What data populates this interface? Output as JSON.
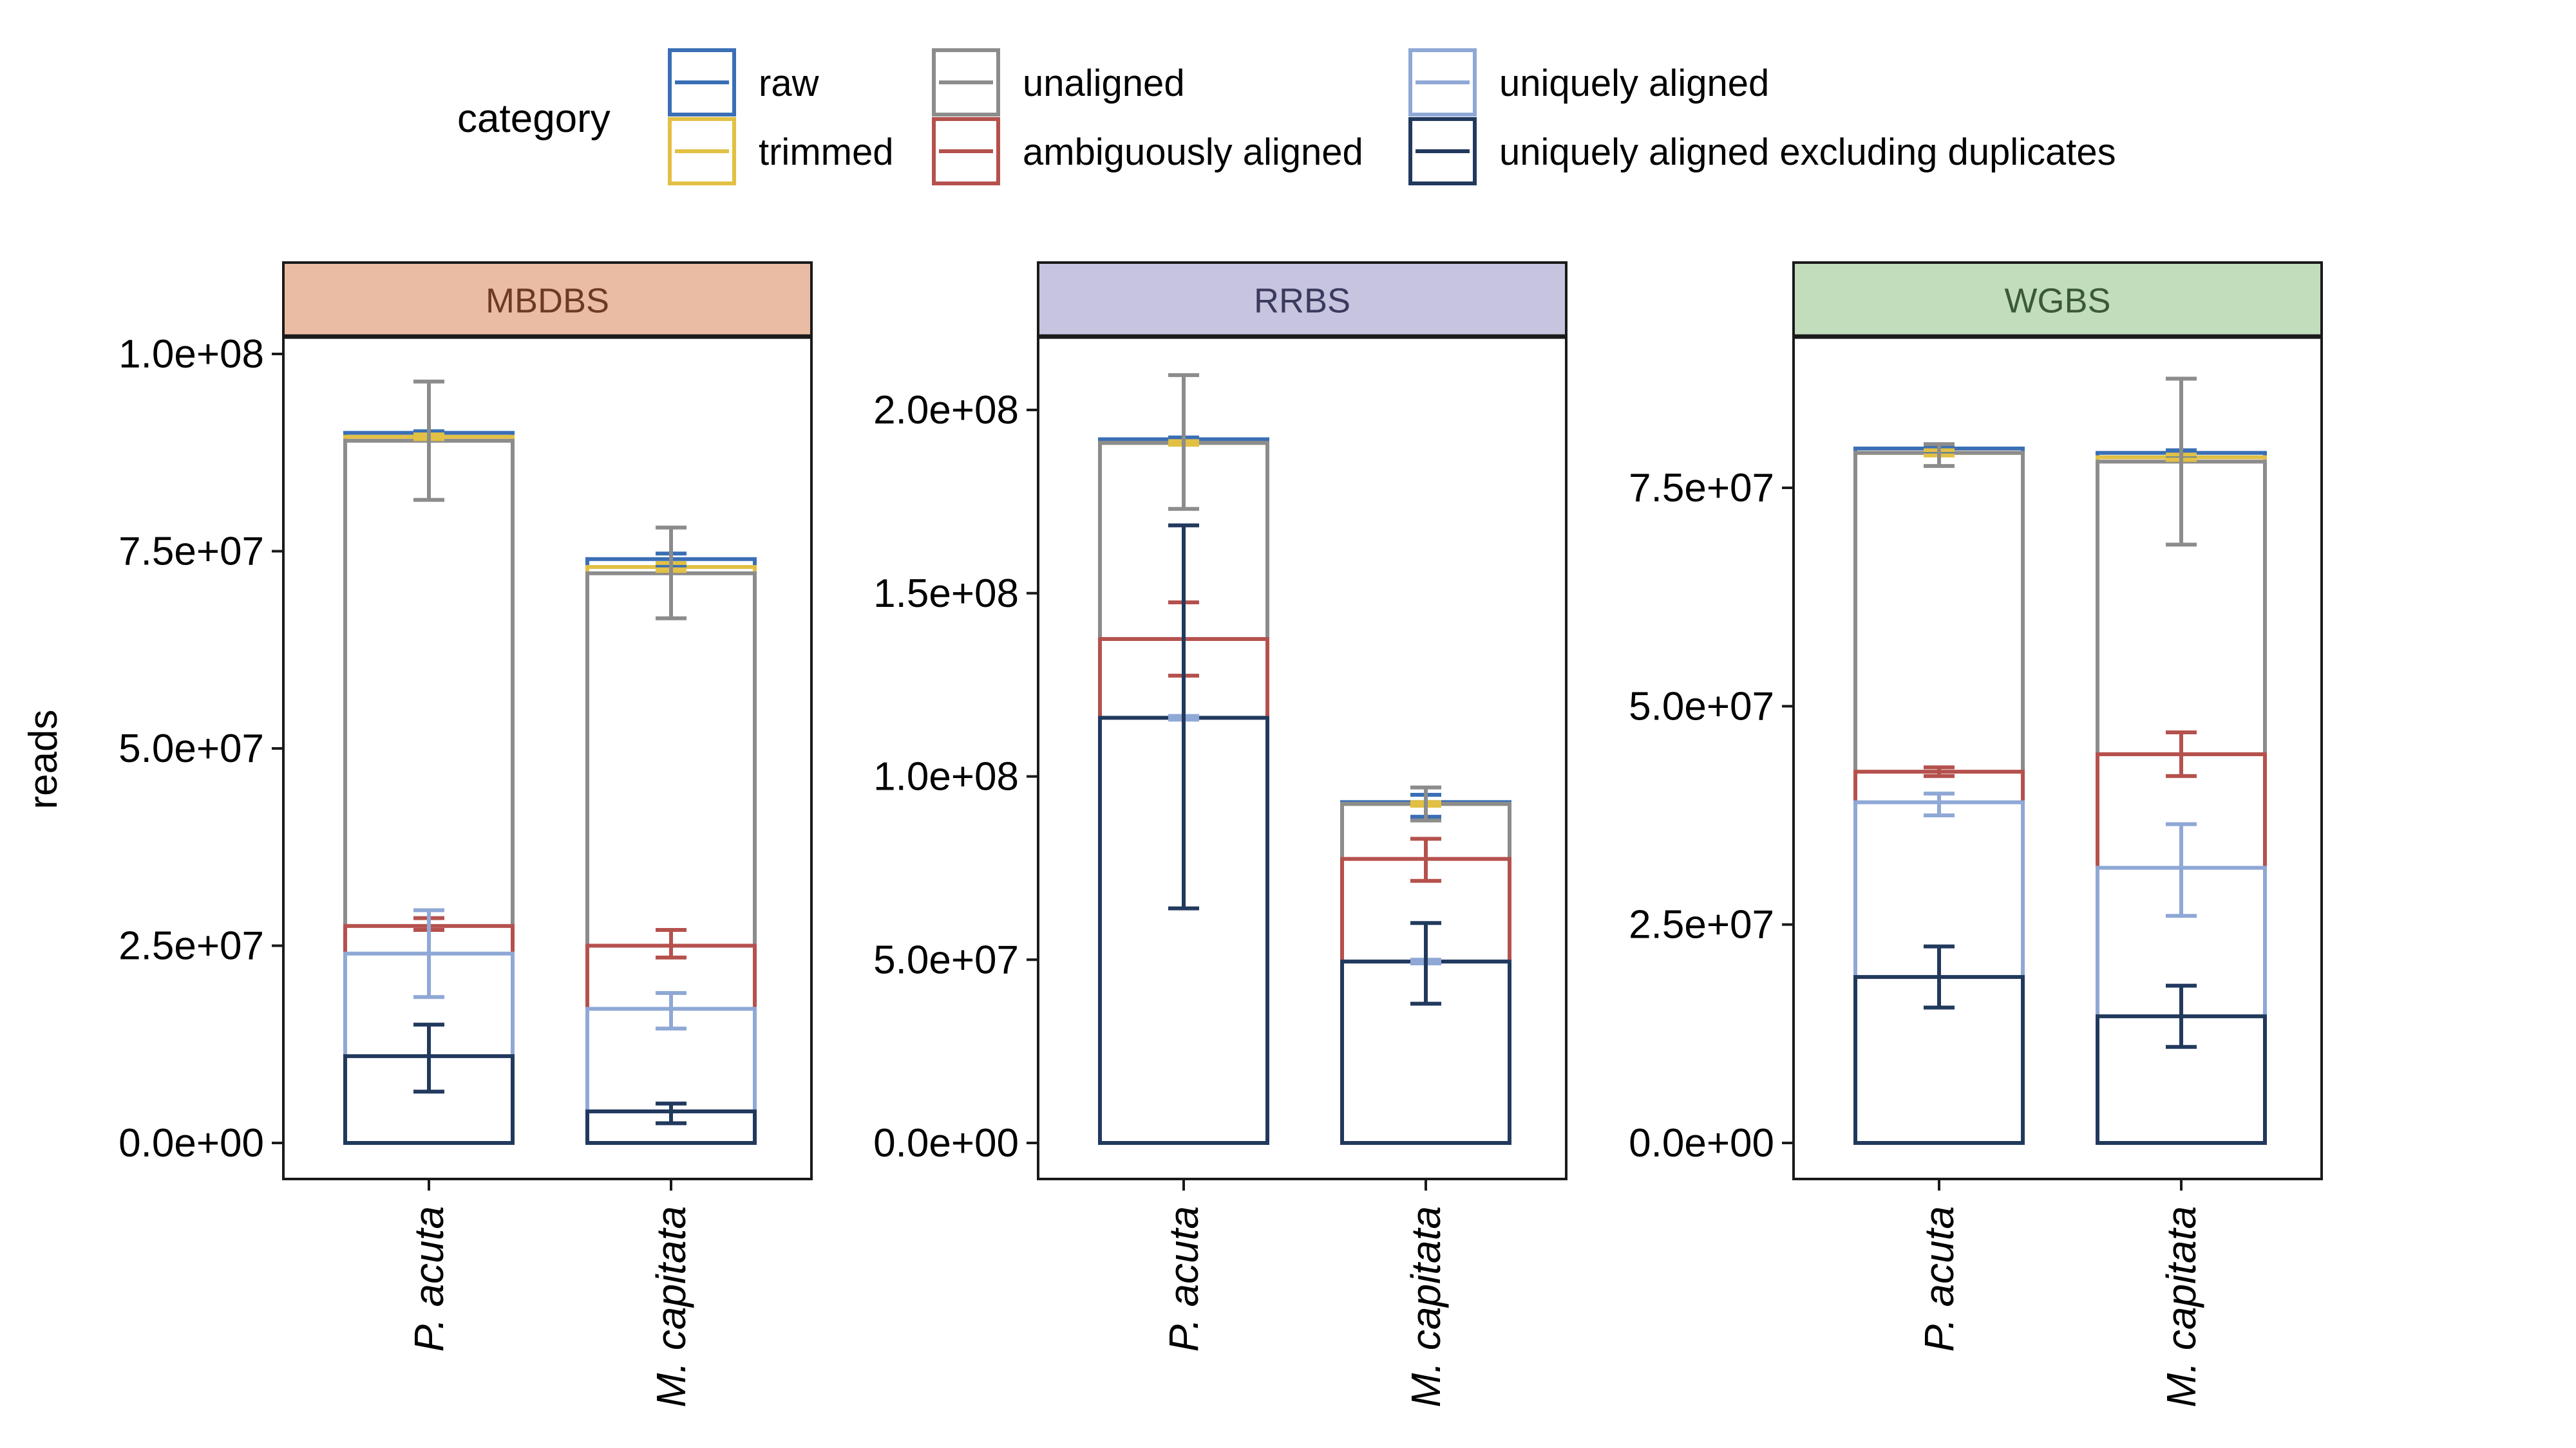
{
  "legend": {
    "title": "category",
    "items": [
      {
        "label": "raw",
        "color": "#3a6fb5"
      },
      {
        "label": "trimmed",
        "color": "#e2c044"
      },
      {
        "label": "unaligned",
        "color": "#8c8c8c"
      },
      {
        "label": "ambiguously aligned",
        "color": "#b5514d"
      },
      {
        "label": "uniquely aligned",
        "color": "#8fa8d6"
      },
      {
        "label": "uniquely aligned excluding duplicates",
        "color": "#22395e"
      }
    ]
  },
  "chart_data": {
    "type": "bar",
    "ylabel": "reads",
    "categories": [
      "P. acuta",
      "M. capitata"
    ],
    "panels": [
      {
        "label": "MBDBS",
        "strip_color": "#eabca4",
        "strip_text_color": "#6e3a22",
        "ylim": [
          0,
          100000000
        ],
        "ticks": [
          {
            "value": 0,
            "label": "0.0e+00"
          },
          {
            "value": 25000000,
            "label": "2.5e+07"
          },
          {
            "value": 50000000,
            "label": "5.0e+07"
          },
          {
            "value": 75000000,
            "label": "7.5e+07"
          },
          {
            "value": 100000000,
            "label": "1.0e+08"
          }
        ],
        "series": [
          {
            "name": "raw",
            "values": [
              90000000,
              74000000
            ],
            "errors": [
              [
                89800000,
                90200000
              ],
              [
                73200000,
                74700000
              ]
            ]
          },
          {
            "name": "trimmed",
            "values": [
              89500000,
              73000000
            ],
            "errors": [
              [
                89200000,
                89800000
              ],
              [
                72500000,
                73500000
              ]
            ]
          },
          {
            "name": "unaligned",
            "values": [
              89000000,
              72200000
            ],
            "errors": [
              [
                81500000,
                96500000
              ],
              [
                66500000,
                78000000
              ]
            ]
          },
          {
            "name": "ambiguously aligned",
            "values": [
              27500000,
              25000000
            ],
            "errors": [
              [
                27000000,
                28500000
              ],
              [
                23500000,
                27000000
              ]
            ]
          },
          {
            "name": "uniquely aligned",
            "values": [
              24000000,
              17000000
            ],
            "errors": [
              [
                18500000,
                29500000
              ],
              [
                14500000,
                19000000
              ]
            ]
          },
          {
            "name": "uniquely aligned excluding duplicates",
            "values": [
              11000000,
              4000000
            ],
            "errors": [
              [
                6500000,
                15000000
              ],
              [
                2500000,
                5000000
              ]
            ]
          }
        ]
      },
      {
        "label": "RRBS",
        "strip_color": "#c6c4de",
        "strip_text_color": "#3a3a5e",
        "ylim": [
          0,
          200000000
        ],
        "ticks": [
          {
            "value": 0,
            "label": "0.0e+00"
          },
          {
            "value": 50000000,
            "label": "5.0e+07"
          },
          {
            "value": 100000000,
            "label": "1.0e+08"
          },
          {
            "value": 150000000,
            "label": "1.5e+08"
          },
          {
            "value": 200000000,
            "label": "2.0e+08"
          }
        ],
        "series": [
          {
            "name": "raw",
            "values": [
              192000000,
              93000000
            ],
            "errors": [
              [
                191500000,
                192500000
              ],
              [
                89000000,
                95000000
              ]
            ]
          },
          {
            "name": "trimmed",
            "values": [
              191000000,
              92500000
            ],
            "errors": [
              [
                190500000,
                191500000
              ],
              [
                92000000,
                93000000
              ]
            ]
          },
          {
            "name": "unaligned",
            "values": [
              191000000,
              92500000
            ],
            "errors": [
              [
                173000000,
                209500000
              ],
              [
                88000000,
                97000000
              ]
            ]
          },
          {
            "name": "ambiguously aligned",
            "values": [
              137500000,
              77500000
            ],
            "errors": [
              [
                127500000,
                147500000
              ],
              [
                71500000,
                83000000
              ]
            ]
          },
          {
            "name": "uniquely aligned",
            "values": [
              116000000,
              49500000
            ],
            "errors": [
              [
                115500000,
                116500000
              ],
              [
                49000000,
                50000000
              ]
            ]
          },
          {
            "name": "uniquely aligned excluding duplicates",
            "values": [
              116000000,
              49500000
            ],
            "errors": [
              [
                64000000,
                168500000
              ],
              [
                38000000,
                60000000
              ]
            ]
          }
        ]
      },
      {
        "label": "WGBS",
        "strip_color": "#c1ddbb",
        "strip_text_color": "#3a5a36",
        "ylim": [
          0,
          90000000
        ],
        "ticks": [
          {
            "value": 0,
            "label": "0.0e+00"
          },
          {
            "value": 25000000,
            "label": "2.5e+07"
          },
          {
            "value": 50000000,
            "label": "5.0e+07"
          },
          {
            "value": 75000000,
            "label": "7.5e+07"
          }
        ],
        "series": [
          {
            "name": "raw",
            "values": [
              79500000,
              79000000
            ],
            "errors": [
              [
                79200000,
                79800000
              ],
              [
                78700000,
                79300000
              ]
            ]
          },
          {
            "name": "trimmed",
            "values": [
              79000000,
              78500000
            ],
            "errors": [
              [
                78700000,
                79300000
              ],
              [
                78200000,
                78800000
              ]
            ]
          },
          {
            "name": "unaligned",
            "values": [
              79000000,
              78000000
            ],
            "errors": [
              [
                77500000,
                80000000
              ],
              [
                68500000,
                87500000
              ]
            ]
          },
          {
            "name": "ambiguously aligned",
            "values": [
              42500000,
              44500000
            ],
            "errors": [
              [
                42000000,
                43000000
              ],
              [
                42000000,
                47000000
              ]
            ]
          },
          {
            "name": "uniquely aligned",
            "values": [
              39000000,
              31500000
            ],
            "errors": [
              [
                37500000,
                40000000
              ],
              [
                26000000,
                36500000
              ]
            ]
          },
          {
            "name": "uniquely aligned excluding duplicates",
            "values": [
              19000000,
              14500000
            ],
            "errors": [
              [
                15500000,
                22500000
              ],
              [
                11000000,
                18000000
              ]
            ]
          }
        ]
      }
    ]
  }
}
